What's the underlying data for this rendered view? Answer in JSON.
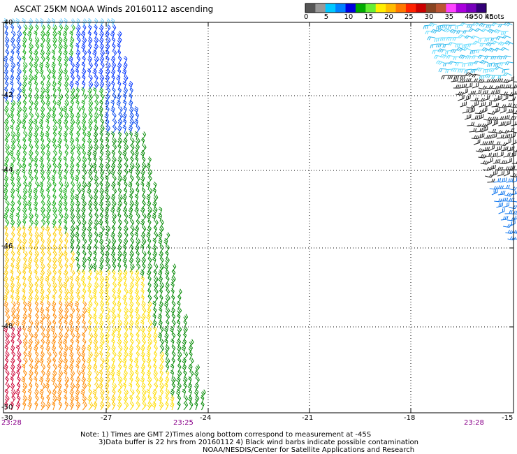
{
  "title": "ASCAT 25KM NOAA Winds 20160112 ascending",
  "legend": {
    "colors": [
      "#555555",
      "#999999",
      "#00c8ff",
      "#0080ff",
      "#0000e0",
      "#00aa00",
      "#66ee33",
      "#ffee00",
      "#ffbb00",
      "#ff7700",
      "#ff2200",
      "#cc0000",
      "#884422",
      "#bb5533",
      "#ff44ff",
      "#aa00dd",
      "#7700bb",
      "#330077"
    ],
    "labels": [
      "0",
      "5",
      "10",
      "15",
      "20",
      "25",
      "30",
      "35",
      "40",
      "45"
    ],
    "unit": ">50 knots"
  },
  "axes": {
    "lat_labels": [
      "-40",
      "-42",
      "-44",
      "-46",
      "-48",
      "-50"
    ],
    "lon_labels": [
      "-30",
      "-27",
      "-24",
      "-21",
      "-18",
      "-15"
    ]
  },
  "times": [
    "23:28",
    "23:25",
    "23:28"
  ],
  "notes": [
    "Note: 1) Times are GMT 2)Times along bottom correspond to measurement at -45S",
    "3)Data buffer is 22 hrs from 20160112 4) Black wind barbs indicate possible contamination",
    "NOAA/NESDIS/Center for Satellite Applications and Research"
  ]
}
